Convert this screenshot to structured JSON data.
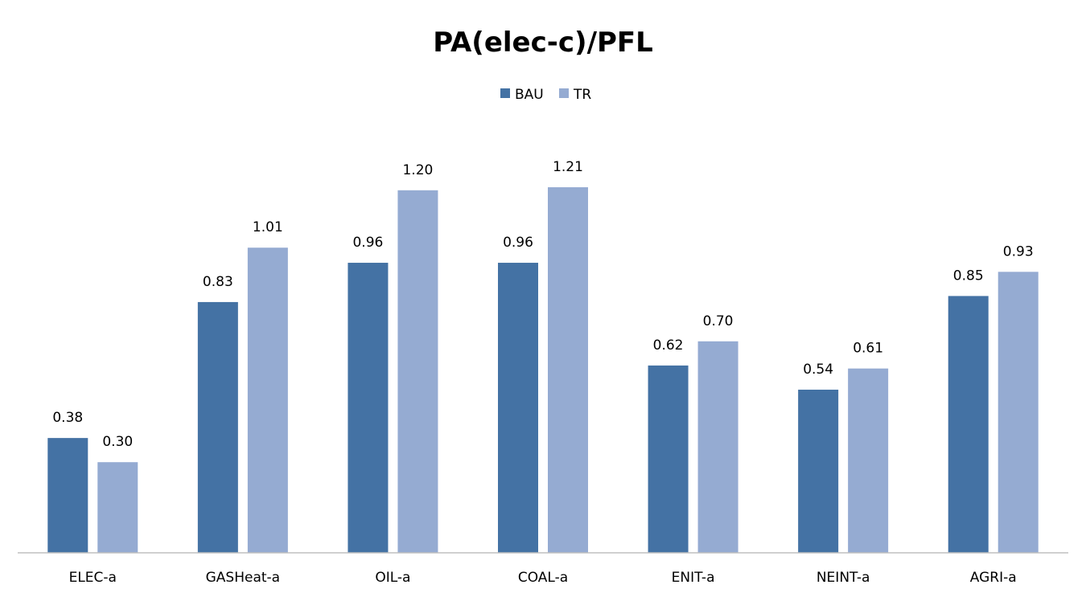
{
  "chart_data": {
    "type": "bar",
    "title": "PA(elec-c)/PFL",
    "xlabel": "",
    "ylabel": "",
    "ylim": [
      0,
      1.3
    ],
    "grid": false,
    "legend_position": "top-center",
    "categories": [
      "ELEC-a",
      "GASHeat-a",
      "OIL-a",
      "COAL-a",
      "ENIT-a",
      "NEINT-a",
      "AGRI-a"
    ],
    "series": [
      {
        "name": "BAU",
        "color": "#4472a4",
        "values": [
          0.38,
          0.83,
          0.96,
          0.96,
          0.62,
          0.54,
          0.85
        ],
        "labels": [
          "0.38",
          "0.83",
          "0.96",
          "0.96",
          "0.62",
          "0.54",
          "0.85"
        ]
      },
      {
        "name": "TR",
        "color": "#95abd2",
        "values": [
          0.3,
          1.01,
          1.2,
          1.21,
          0.7,
          0.61,
          0.93
        ],
        "labels": [
          "0.30",
          "1.01",
          "1.20",
          "1.21",
          "0.70",
          "0.61",
          "0.93"
        ]
      }
    ]
  }
}
